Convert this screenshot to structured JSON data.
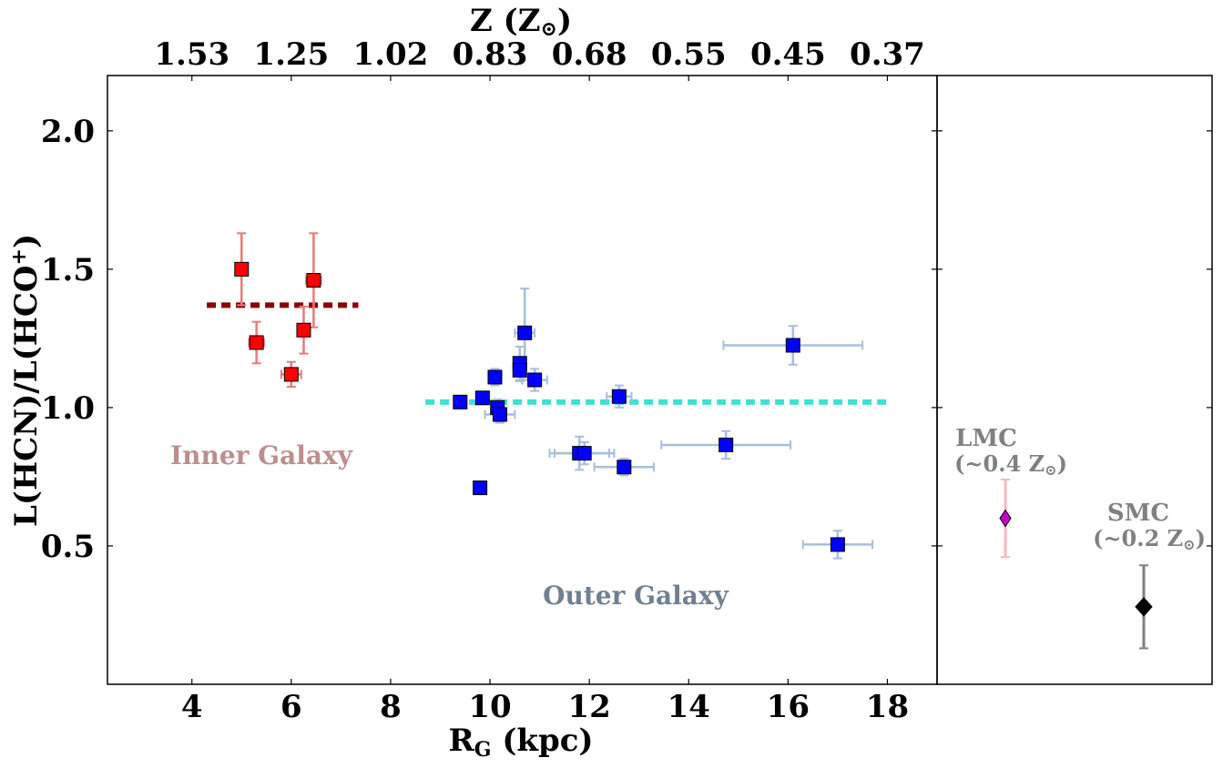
{
  "chart_data": {
    "type": "scatter",
    "title": "",
    "xlabel_main": "R",
    "xlabel_sub": "G",
    "xlabel_unit": " (kpc)",
    "ylabel_main": "L(HCN)/L(HCO",
    "ylabel_sup": "+",
    "ylabel_end": ")",
    "top_xlabel_main": "Z (Z",
    "top_xlabel_sym": "⊙",
    "top_xlabel_end": ")",
    "xlim": [
      2.3,
      19.0
    ],
    "ylim": [
      0.0,
      2.2
    ],
    "x_ticks": [
      4,
      6,
      8,
      10,
      12,
      14,
      16,
      18
    ],
    "x_tick_labels": [
      "4",
      "6",
      "8",
      "10",
      "12",
      "14",
      "16",
      "18"
    ],
    "y_ticks": [
      0.5,
      1.0,
      1.5,
      2.0
    ],
    "y_tick_labels": [
      "0.5",
      "1.0",
      "1.5",
      "2.0"
    ],
    "top_ticks": [
      4,
      6,
      8,
      10,
      12,
      14,
      16,
      18
    ],
    "top_tick_labels": [
      "1.53",
      "1.25",
      "1.02",
      "0.83",
      "0.68",
      "0.55",
      "0.45",
      "0.37"
    ],
    "series": [
      {
        "name": "Inner Galaxy",
        "marker_color": "#ff0000",
        "error_color": "#e87a7a",
        "points": [
          {
            "x": 5.0,
            "y": 1.5,
            "xerr": 0.05,
            "yerr": 0.13
          },
          {
            "x": 5.3,
            "y": 1.235,
            "xerr": 0.15,
            "yerr": 0.075
          },
          {
            "x": 6.0,
            "y": 1.12,
            "xerr": 0.2,
            "yerr": 0.045
          },
          {
            "x": 6.25,
            "y": 1.28,
            "xerr": 0.1,
            "yerr": 0.085
          },
          {
            "x": 6.45,
            "y": 1.46,
            "xerr": 0.15,
            "yerr": 0.17
          }
        ],
        "mean_line": {
          "y": 1.37,
          "x_start": 4.3,
          "x_end": 7.35,
          "color": "#8b0000"
        }
      },
      {
        "name": "Outer Galaxy",
        "marker_color": "#0000ff",
        "error_color": "#a8bfdc",
        "points": [
          {
            "x": 9.4,
            "y": 1.02,
            "xerr": 0.1,
            "yerr": 0.02
          },
          {
            "x": 9.8,
            "y": 0.71,
            "xerr": 0.05,
            "yerr": 0.02
          },
          {
            "x": 9.85,
            "y": 1.035,
            "xerr": 0.1,
            "yerr": 0.02
          },
          {
            "x": 10.1,
            "y": 1.11,
            "xerr": 0.1,
            "yerr": 0.03
          },
          {
            "x": 10.15,
            "y": 1.0,
            "xerr": 0.1,
            "yerr": 0.03
          },
          {
            "x": 10.2,
            "y": 0.975,
            "xerr": 0.3,
            "yerr": 0.03
          },
          {
            "x": 10.6,
            "y": 1.16,
            "xerr": 0.1,
            "yerr": 0.06
          },
          {
            "x": 10.6,
            "y": 1.135,
            "xerr": 0.1,
            "yerr": 0.04
          },
          {
            "x": 10.7,
            "y": 1.27,
            "xerr": 0.2,
            "yerr": 0.16
          },
          {
            "x": 10.9,
            "y": 1.1,
            "xerr": 0.25,
            "yerr": 0.04
          },
          {
            "x": 11.8,
            "y": 0.835,
            "xerr": 0.6,
            "yerr": 0.06
          },
          {
            "x": 11.9,
            "y": 0.835,
            "xerr": 0.6,
            "yerr": 0.04
          },
          {
            "x": 12.6,
            "y": 1.04,
            "xerr": 0.25,
            "yerr": 0.04
          },
          {
            "x": 12.7,
            "y": 0.785,
            "xerr": 0.6,
            "yerr": 0.03
          },
          {
            "x": 14.75,
            "y": 0.865,
            "xerr": 1.3,
            "yerr": 0.05
          },
          {
            "x": 16.1,
            "y": 1.225,
            "xerr": 1.4,
            "yerr": 0.07
          },
          {
            "x": 17.0,
            "y": 0.505,
            "xerr": 0.7,
            "yerr": 0.05
          }
        ],
        "mean_line": {
          "y": 1.02,
          "x_start": 8.7,
          "x_end": 18.0,
          "color": "#40e0d0"
        }
      }
    ],
    "annotations": {
      "inner_label": "Inner Galaxy",
      "inner_label_color": "#bc8f8f",
      "outer_label": "Outer Galaxy",
      "outer_label_color": "#708090"
    },
    "side_panel": {
      "ylim": [
        0.0,
        2.2
      ],
      "points": [
        {
          "name": "LMC",
          "label": "LMC",
          "sublabel_prefix": "(~0.4 Z",
          "sublabel_sym": "⊙",
          "sublabel_end": ")",
          "y": 0.6,
          "yerr": 0.14,
          "marker_color": "#cc00cc",
          "error_color": "#ffb6c1",
          "text_color": "#808080"
        },
        {
          "name": "SMC",
          "label": "SMC",
          "sublabel_prefix": "(~0.2 Z",
          "sublabel_sym": "⊙",
          "sublabel_end": ")",
          "y": 0.28,
          "yerr": 0.15,
          "marker_color": "#000000",
          "error_color": "#808080",
          "text_color": "#808080"
        }
      ]
    }
  }
}
